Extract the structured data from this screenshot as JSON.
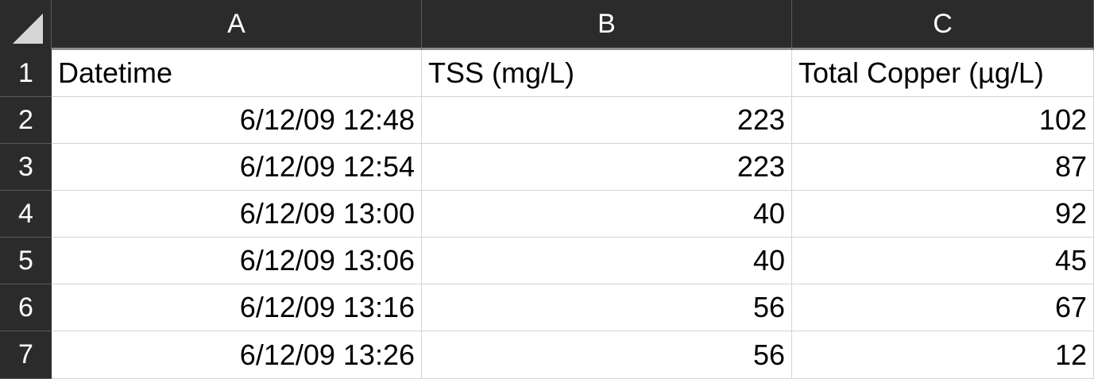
{
  "columns": [
    "A",
    "B",
    "C"
  ],
  "rows": [
    {
      "num": "1",
      "a": "Datetime",
      "b": "TSS (mg/L)",
      "c": "Total Copper (µg/L)"
    },
    {
      "num": "2",
      "a": "6/12/09 12:48",
      "b": "223",
      "c": "102"
    },
    {
      "num": "3",
      "a": "6/12/09 12:54",
      "b": "223",
      "c": "87"
    },
    {
      "num": "4",
      "a": "6/12/09 13:00",
      "b": "40",
      "c": "92"
    },
    {
      "num": "5",
      "a": "6/12/09 13:06",
      "b": "40",
      "c": "45"
    },
    {
      "num": "6",
      "a": "6/12/09 13:16",
      "b": "56",
      "c": "67"
    },
    {
      "num": "7",
      "a": "6/12/09 13:26",
      "b": "56",
      "c": "12"
    }
  ],
  "colors": {
    "header_bg": "#2b2b2b",
    "header_text": "#ffffff",
    "grid": "#d4d4d4"
  }
}
